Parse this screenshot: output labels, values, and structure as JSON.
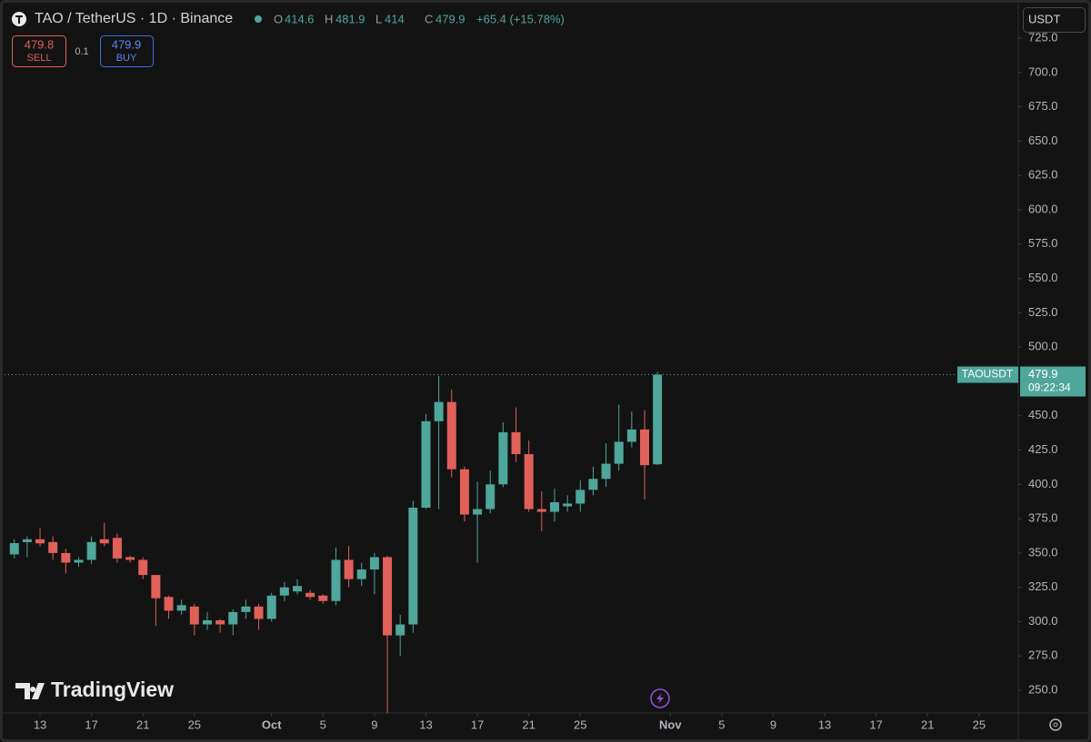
{
  "chart_data": {
    "type": "candlestick",
    "title": "TAO / TetherUS · 1D · Binance",
    "header": {
      "o_label": "O",
      "open": 414.6,
      "h_label": "H",
      "high": 481.9,
      "l_label": "L",
      "low": 414.0,
      "c_label": "C",
      "close": 479.9,
      "change": "+65.4 (+15.78%)"
    },
    "trade": {
      "sell_price": 479.8,
      "sell_label": "SELL",
      "spread": 0.1,
      "buy_price": 479.9,
      "buy_label": "BUY"
    },
    "currency": "USDT",
    "symbol": "TAOUSDT",
    "last_price": 479.9,
    "countdown": "09:22:34",
    "watermark": "TradingView",
    "up_color": "#4fa69a",
    "down_color": "#e0605a",
    "x": [
      "Sep 11",
      "Sep 12",
      "Sep 13",
      "Sep 14",
      "Sep 15",
      "Sep 16",
      "Sep 17",
      "Sep 18",
      "Sep 19",
      "Sep 20",
      "Sep 21",
      "Sep 22",
      "Sep 23",
      "Sep 24",
      "Sep 25",
      "Sep 26",
      "Sep 27",
      "Sep 28",
      "Sep 29",
      "Sep 30",
      "Oct 1",
      "Oct 2",
      "Oct 3",
      "Oct 4",
      "Oct 5",
      "Oct 6",
      "Oct 7",
      "Oct 8",
      "Oct 9",
      "Oct 10",
      "Oct 11",
      "Oct 12",
      "Oct 13",
      "Oct 14",
      "Oct 15",
      "Oct 16",
      "Oct 17",
      "Oct 18",
      "Oct 19",
      "Oct 20",
      "Oct 21",
      "Oct 22",
      "Oct 23",
      "Oct 24",
      "Oct 25",
      "Oct 26",
      "Oct 27",
      "Oct 28",
      "Oct 29",
      "Oct 30",
      "Oct 31"
    ],
    "open": [
      349,
      357.9,
      360,
      358,
      350,
      343,
      345,
      360,
      361,
      347,
      345,
      334,
      318,
      308,
      311,
      298,
      301,
      298,
      307,
      311,
      302,
      319,
      322,
      321,
      319,
      315,
      345,
      331,
      338,
      347,
      290,
      298,
      383,
      446,
      460,
      411,
      378,
      382,
      400,
      438,
      422,
      382,
      380,
      384,
      386,
      396,
      404,
      415,
      431,
      440,
      414.6
    ],
    "high": [
      360,
      362,
      368,
      362,
      353,
      347,
      362,
      372,
      364,
      348,
      347,
      334,
      319,
      316,
      313,
      307,
      302,
      309,
      316,
      313,
      321,
      329,
      331,
      323,
      320,
      354,
      355,
      343,
      350,
      348,
      305,
      388,
      451,
      479,
      469,
      413,
      402,
      410,
      445,
      456,
      432,
      395,
      397,
      392,
      403,
      413,
      430,
      458,
      453,
      454,
      481.9
    ],
    "low": [
      346,
      347,
      355,
      345,
      335,
      340,
      342,
      355,
      343,
      343,
      331,
      297,
      302,
      305,
      290,
      294,
      292,
      290,
      302,
      294,
      300,
      315,
      320,
      316,
      313,
      312,
      325,
      326,
      320,
      232,
      275,
      292,
      382,
      382,
      405,
      373,
      343,
      379,
      398,
      416,
      380,
      366,
      373,
      380,
      380,
      392,
      398,
      410,
      427,
      389,
      414.0
    ],
    "close": [
      357.2,
      360,
      357,
      350,
      343,
      345,
      358,
      357,
      346,
      345,
      334,
      317,
      308,
      312,
      298,
      301,
      298,
      307,
      311,
      302,
      319,
      325,
      326,
      318,
      315,
      345,
      331,
      338,
      347,
      290,
      298,
      383,
      446,
      460,
      411,
      378,
      382,
      400,
      438,
      422,
      382,
      380,
      387,
      386,
      396,
      404,
      415,
      431,
      440,
      414,
      479.9
    ],
    "xlim": [
      -0.76,
      78.05
    ],
    "xticks": [
      {
        "value": 2,
        "label": "13"
      },
      {
        "value": 6,
        "label": "17"
      },
      {
        "value": 10,
        "label": "21"
      },
      {
        "value": 14,
        "label": "25"
      },
      {
        "value": 20,
        "label": "Oct"
      },
      {
        "value": 24,
        "label": "5"
      },
      {
        "value": 28,
        "label": "9"
      },
      {
        "value": 32,
        "label": "13"
      },
      {
        "value": 36,
        "label": "17"
      },
      {
        "value": 40,
        "label": "21"
      },
      {
        "value": 44,
        "label": "25"
      },
      {
        "value": 51,
        "label": "Nov"
      },
      {
        "value": 55,
        "label": "5"
      },
      {
        "value": 59,
        "label": "9"
      },
      {
        "value": 63,
        "label": "13"
      },
      {
        "value": 67,
        "label": "17"
      },
      {
        "value": 71,
        "label": "21"
      },
      {
        "value": 75,
        "label": "25"
      }
    ],
    "ylim": [
      233.5,
      749.5
    ],
    "yticks": [
      {
        "value": 250,
        "label": "250.0"
      },
      {
        "value": 275,
        "label": "275.0"
      },
      {
        "value": 300,
        "label": "300.0"
      },
      {
        "value": 325,
        "label": "325.0"
      },
      {
        "value": 350,
        "label": "350.0"
      },
      {
        "value": 375,
        "label": "375.0"
      },
      {
        "value": 400,
        "label": "400.0"
      },
      {
        "value": 425,
        "label": "425.0"
      },
      {
        "value": 450,
        "label": "450.0"
      },
      {
        "value": 475,
        "label": "475.0"
      },
      {
        "value": 500,
        "label": "500.0"
      },
      {
        "value": 525,
        "label": "525.0"
      },
      {
        "value": 550,
        "label": "550.0"
      },
      {
        "value": 575,
        "label": "575.0"
      },
      {
        "value": 600,
        "label": "600.0"
      },
      {
        "value": 625,
        "label": "625.0"
      },
      {
        "value": 650,
        "label": "650.0"
      },
      {
        "value": 675,
        "label": "675.0"
      },
      {
        "value": 700,
        "label": "700.0"
      },
      {
        "value": 725,
        "label": "725.0"
      }
    ],
    "grid": false
  }
}
